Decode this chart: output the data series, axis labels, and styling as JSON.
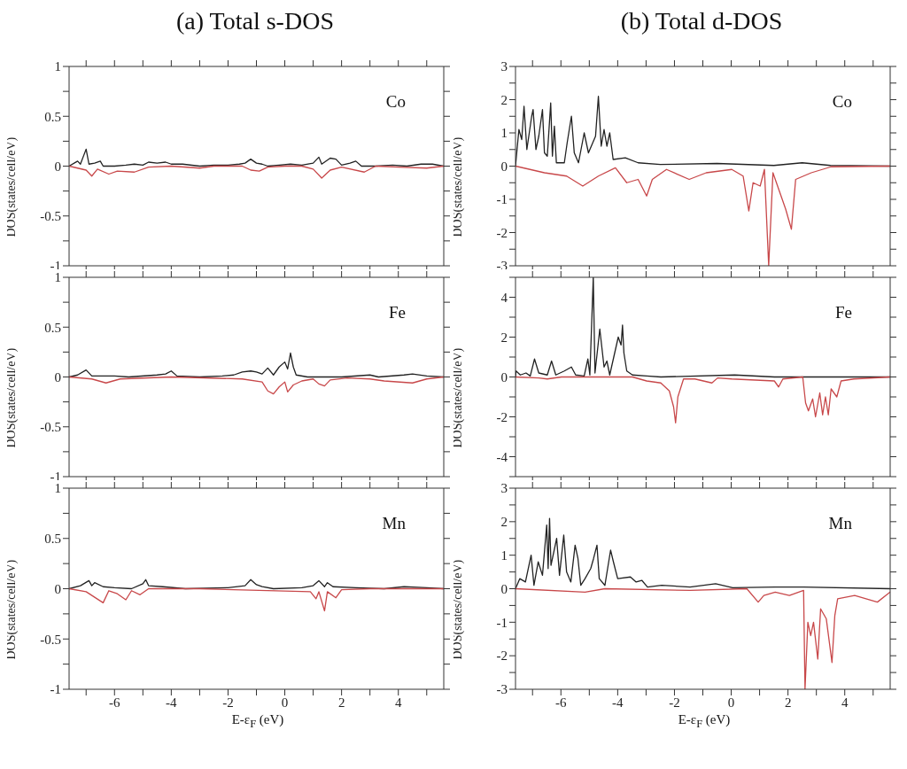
{
  "chart_data": [
    {
      "type": "line",
      "title": "(a) Total s-DOS",
      "ylabel": "DOS(states/cell/eV)",
      "annotations": [
        "Co"
      ],
      "tick_labels": "y",
      "xlim": [
        -7.6,
        5.6
      ],
      "xticks": [
        {
          "value": -7,
          "label": null
        },
        -6,
        {
          "value": -5,
          "label": null
        },
        -4,
        {
          "value": -3,
          "label": null
        },
        -2,
        {
          "value": -1,
          "label": null
        },
        0,
        {
          "value": 1,
          "label": null
        },
        2,
        {
          "value": 3,
          "label": null
        },
        4,
        {
          "value": 5,
          "label": null
        }
      ],
      "ylim": [
        -1,
        1
      ],
      "yticks": [
        -1,
        {
          "value": -0.75,
          "label": null
        },
        -0.5,
        {
          "value": -0.25,
          "label": null
        },
        0,
        {
          "value": 0.25,
          "label": null
        },
        0.5,
        {
          "value": 0.75,
          "label": null
        },
        1
      ],
      "series": [
        {
          "color": "#222222",
          "x": [
            -7.6,
            -7.3,
            -7.2,
            -7.0,
            -6.9,
            -6.7,
            -6.5,
            -6.4,
            -6.0,
            -5.6,
            -5.3,
            -5.0,
            -4.8,
            -4.5,
            -4.2,
            -4.0,
            -3.6,
            -3.0,
            -2.5,
            -2.0,
            -1.6,
            -1.4,
            -1.2,
            -1.0,
            -0.8,
            -0.6,
            -0.2,
            0.2,
            0.6,
            1.0,
            1.2,
            1.3,
            1.6,
            1.8,
            2.0,
            2.3,
            2.5,
            2.7,
            3.2,
            3.8,
            4.3,
            4.8,
            5.2,
            5.6
          ],
          "values": [
            0,
            0.05,
            0.02,
            0.17,
            0.02,
            0.03,
            0.05,
            0,
            0,
            0.01,
            0.02,
            0.01,
            0.04,
            0.03,
            0.04,
            0.02,
            0.02,
            0,
            0.01,
            0.01,
            0.02,
            0.03,
            0.07,
            0.03,
            0.02,
            0,
            0.01,
            0.02,
            0.01,
            0.03,
            0.09,
            0.02,
            0.08,
            0.07,
            0.01,
            0.03,
            0.05,
            0,
            0,
            0.01,
            0,
            0.02,
            0.02,
            0
          ]
        },
        {
          "color": "#c8484a",
          "x": [
            -7.6,
            -7.3,
            -7.0,
            -6.8,
            -6.6,
            -6.2,
            -5.9,
            -5.3,
            -4.8,
            -4.0,
            -3.0,
            -2.5,
            -1.5,
            -1.2,
            -0.9,
            -0.6,
            0,
            0.6,
            1.0,
            1.3,
            1.6,
            2.0,
            2.8,
            3.2,
            4.0,
            5.0,
            5.6
          ],
          "values": [
            0,
            -0.02,
            -0.04,
            -0.1,
            -0.03,
            -0.08,
            -0.05,
            -0.06,
            -0.01,
            0,
            -0.02,
            0,
            0,
            -0.04,
            -0.05,
            -0.01,
            0,
            0,
            -0.03,
            -0.12,
            -0.04,
            -0.01,
            -0.06,
            0,
            -0.01,
            -0.02,
            0
          ]
        }
      ]
    },
    {
      "type": "line",
      "title": "(b) Total d-DOS",
      "ylabel": "DOS(states/cell/eV)",
      "annotations": [
        "Co"
      ],
      "tick_labels": "y",
      "xlim": [
        -7.6,
        5.6
      ],
      "xticks": [
        {
          "value": -7,
          "label": null
        },
        -6,
        {
          "value": -5,
          "label": null
        },
        -4,
        {
          "value": -3,
          "label": null
        },
        -2,
        {
          "value": -1,
          "label": null
        },
        0,
        {
          "value": 1,
          "label": null
        },
        2,
        {
          "value": 3,
          "label": null
        },
        4,
        {
          "value": 5,
          "label": null
        }
      ],
      "ylim": [
        -3,
        3
      ],
      "yticks": [
        -3,
        {
          "value": -2.5,
          "label": null
        },
        -2,
        {
          "value": -1.5,
          "label": null
        },
        -1,
        {
          "value": -0.5,
          "label": null
        },
        0,
        {
          "value": 0.5,
          "label": null
        },
        1,
        {
          "value": 1.5,
          "label": null
        },
        2,
        {
          "value": 2.5,
          "label": null
        },
        3
      ],
      "series": [
        {
          "color": "#222222",
          "x": [
            -7.6,
            -7.48,
            -7.38,
            -7.3,
            -7.2,
            -7.03,
            -6.98,
            -6.88,
            -6.78,
            -6.65,
            -6.58,
            -6.48,
            -6.36,
            -6.3,
            -6.23,
            -6.16,
            -5.88,
            -5.78,
            -5.63,
            -5.53,
            -5.38,
            -5.18,
            -5.03,
            -4.78,
            -4.68,
            -4.58,
            -4.48,
            -4.38,
            -4.28,
            -4.16,
            -3.73,
            -3.28,
            -2.5,
            -0.5,
            1.5,
            2.5,
            3.5,
            5.6
          ],
          "values": [
            0,
            1.1,
            0.8,
            1.8,
            0.5,
            1.5,
            1.7,
            0.5,
            0.9,
            1.7,
            0.4,
            0.3,
            1.9,
            0.3,
            1.2,
            0.1,
            0.1,
            0.7,
            1.5,
            0.4,
            0.1,
            1.0,
            0.4,
            0.9,
            2.1,
            0.6,
            1.1,
            0.6,
            1.0,
            0.2,
            0.25,
            0.1,
            0.05,
            0.08,
            0.02,
            0.1,
            0.02,
            0
          ]
        },
        {
          "color": "#c8484a",
          "x": [
            -7.6,
            -6.58,
            -5.8,
            -5.23,
            -4.68,
            -4.08,
            -3.68,
            -3.28,
            -2.98,
            -2.78,
            -2.28,
            -1.48,
            -0.88,
            0.02,
            0.42,
            0.62,
            0.77,
            1.02,
            1.17,
            1.32,
            1.47,
            1.92,
            2.12,
            2.27,
            2.82,
            3.52,
            5.6
          ],
          "values": [
            0,
            -0.2,
            -0.3,
            -0.6,
            -0.3,
            -0.05,
            -0.5,
            -0.4,
            -0.9,
            -0.4,
            -0.1,
            -0.4,
            -0.2,
            -0.1,
            -0.3,
            -1.35,
            -0.5,
            -0.6,
            -0.1,
            -3.0,
            -0.2,
            -1.3,
            -1.9,
            -0.4,
            -0.2,
            -0.02,
            0
          ]
        }
      ]
    },
    {
      "type": "line",
      "ylabel": "DOS(states/cell/eV)",
      "annotations": [
        "Fe"
      ],
      "tick_labels": "y",
      "xlim": [
        -7.6,
        5.6
      ],
      "xticks": [
        {
          "value": -7,
          "label": null
        },
        -6,
        {
          "value": -5,
          "label": null
        },
        -4,
        {
          "value": -3,
          "label": null
        },
        -2,
        {
          "value": -1,
          "label": null
        },
        0,
        {
          "value": 1,
          "label": null
        },
        2,
        {
          "value": 3,
          "label": null
        },
        4,
        {
          "value": 5,
          "label": null
        }
      ],
      "ylim": [
        -1,
        1
      ],
      "yticks": [
        -1,
        {
          "value": -0.75,
          "label": null
        },
        -0.5,
        {
          "value": -0.25,
          "label": null
        },
        0,
        {
          "value": 0.25,
          "label": null
        },
        0.5,
        {
          "value": 0.75,
          "label": null
        },
        1
      ],
      "series": [
        {
          "color": "#222222",
          "x": [
            -7.6,
            -7.3,
            -7.0,
            -6.8,
            -6.0,
            -5.5,
            -4.5,
            -4.2,
            -4.0,
            -3.8,
            -3.0,
            -2.2,
            -1.8,
            -1.5,
            -1.2,
            -1.0,
            -0.8,
            -0.6,
            -0.4,
            -0.2,
            0,
            0.1,
            0.2,
            0.3,
            0.4,
            0.8,
            2.0,
            3.0,
            3.3,
            4.2,
            4.5,
            5.0,
            5.6
          ],
          "values": [
            0,
            0.02,
            0.07,
            0.01,
            0.01,
            0,
            0.02,
            0.03,
            0.06,
            0.01,
            0,
            0.01,
            0.02,
            0.05,
            0.06,
            0.05,
            0.03,
            0.09,
            0.02,
            0.1,
            0.15,
            0.08,
            0.24,
            0.1,
            0.02,
            0,
            0,
            0.02,
            0,
            0.02,
            0.03,
            0.01,
            0
          ]
        },
        {
          "color": "#c8484a",
          "x": [
            -7.6,
            -6.8,
            -6.3,
            -5.8,
            -4.0,
            -1.5,
            -0.8,
            -0.6,
            -0.4,
            -0.2,
            0,
            0.1,
            0.3,
            0.6,
            1.0,
            1.2,
            1.4,
            1.6,
            2.2,
            3.0,
            3.5,
            4.5,
            5.0,
            5.6
          ],
          "values": [
            0,
            -0.02,
            -0.06,
            -0.02,
            0,
            -0.02,
            -0.05,
            -0.14,
            -0.17,
            -0.1,
            -0.05,
            -0.15,
            -0.08,
            -0.04,
            -0.02,
            -0.07,
            -0.09,
            -0.03,
            -0.01,
            -0.02,
            -0.04,
            -0.06,
            -0.02,
            0
          ]
        }
      ]
    },
    {
      "type": "line",
      "ylabel": "DOS(states/cell/eV)",
      "annotations": [
        "Fe"
      ],
      "tick_labels": "y",
      "xlim": [
        -7.6,
        5.6
      ],
      "xticks": [
        {
          "value": -7,
          "label": null
        },
        -6,
        {
          "value": -5,
          "label": null
        },
        -4,
        {
          "value": -3,
          "label": null
        },
        -2,
        {
          "value": -1,
          "label": null
        },
        0,
        {
          "value": 1,
          "label": null
        },
        2,
        {
          "value": 3,
          "label": null
        },
        4,
        {
          "value": 5,
          "label": null
        }
      ],
      "ylim": [
        -5,
        5
      ],
      "yticks": [
        {
          "value": -5,
          "label": null
        },
        -4,
        {
          "value": -3,
          "label": null
        },
        -2,
        {
          "value": -1,
          "label": null
        },
        0,
        {
          "value": 1,
          "label": null
        },
        2,
        {
          "value": 3,
          "label": null
        },
        4,
        {
          "value": 5,
          "label": null
        }
      ],
      "series": [
        {
          "color": "#222222",
          "x": [
            -7.6,
            -7.58,
            -7.43,
            -7.23,
            -7.08,
            -6.93,
            -6.78,
            -6.48,
            -6.33,
            -6.18,
            -5.88,
            -5.63,
            -5.48,
            -5.18,
            -5.05,
            -4.98,
            -4.86,
            -4.8,
            -4.63,
            -4.48,
            -4.38,
            -4.28,
            -3.98,
            -3.88,
            -3.83,
            -3.78,
            -3.68,
            -3.48,
            -2.98,
            -2.48,
            0.12,
            1.52,
            5.6
          ],
          "values": [
            0,
            0.3,
            0.1,
            0.2,
            0.05,
            0.9,
            0.2,
            0.1,
            0.8,
            0.1,
            0.3,
            0.5,
            0.1,
            0.05,
            0.9,
            0.1,
            5,
            0.2,
            2.4,
            0.5,
            0.8,
            0.1,
            2.0,
            1.6,
            2.6,
            1.2,
            0.3,
            0.1,
            0.05,
            0,
            0.1,
            0,
            0
          ]
        },
        {
          "color": "#c8484a",
          "x": [
            -7.6,
            -6.78,
            -6.48,
            -5.98,
            -3.48,
            -2.98,
            -2.48,
            -2.18,
            -2.03,
            -1.96,
            -1.88,
            -1.68,
            -1.28,
            -0.68,
            -0.48,
            0.02,
            1.52,
            1.67,
            1.82,
            2.52,
            2.62,
            2.72,
            2.87,
            2.97,
            3.12,
            3.22,
            3.32,
            3.42,
            3.52,
            3.72,
            3.87,
            4.32,
            5.6
          ],
          "values": [
            0,
            -0.05,
            -0.1,
            0,
            0,
            -0.2,
            -0.3,
            -0.7,
            -1.5,
            -2.3,
            -1.0,
            -0.1,
            -0.1,
            -0.3,
            -0.05,
            -0.1,
            -0.2,
            -0.5,
            -0.1,
            0,
            -1.3,
            -1.7,
            -1.1,
            -2.0,
            -0.8,
            -1.9,
            -1.0,
            -1.9,
            -0.6,
            -1.0,
            -0.2,
            -0.1,
            0
          ]
        }
      ]
    },
    {
      "type": "line",
      "ylabel": "DOS(states/cell/eV)",
      "xlabel": "E-ε$_{F}$ (eV)",
      "annotations": [
        "Mn"
      ],
      "xlim": [
        -7.6,
        5.6
      ],
      "xticks": [
        {
          "value": -7,
          "label": null
        },
        -6,
        {
          "value": -5,
          "label": null
        },
        -4,
        {
          "value": -3,
          "label": null
        },
        -2,
        {
          "value": -1,
          "label": null
        },
        0,
        {
          "value": 1,
          "label": null
        },
        2,
        {
          "value": 3,
          "label": null
        },
        4,
        {
          "value": 5,
          "label": null
        }
      ],
      "ylim": [
        -1,
        1
      ],
      "yticks": [
        -1,
        {
          "value": -0.75,
          "label": null
        },
        -0.5,
        {
          "value": -0.25,
          "label": null
        },
        0,
        {
          "value": 0.25,
          "label": null
        },
        0.5,
        {
          "value": 0.75,
          "label": null
        },
        1
      ],
      "series": [
        {
          "color": "#222222",
          "x": [
            -7.6,
            -7.2,
            -6.9,
            -6.8,
            -6.7,
            -6.4,
            -6.0,
            -5.4,
            -5.0,
            -4.9,
            -4.8,
            -4.3,
            -3.5,
            -2.0,
            -1.4,
            -1.2,
            -1.0,
            -0.8,
            -0.4,
            0.6,
            1.0,
            1.2,
            1.4,
            1.5,
            1.7,
            2.5,
            3.5,
            4.2,
            5.0,
            5.6
          ],
          "values": [
            0,
            0.03,
            0.08,
            0.03,
            0.06,
            0.02,
            0.01,
            0,
            0.05,
            0.09,
            0.03,
            0.02,
            0,
            0.01,
            0.03,
            0.09,
            0.04,
            0.02,
            0,
            0.01,
            0.03,
            0.08,
            0.02,
            0.06,
            0.02,
            0.01,
            0,
            0.02,
            0.01,
            0
          ]
        },
        {
          "color": "#c8484a",
          "x": [
            -7.6,
            -7.0,
            -6.4,
            -6.2,
            -5.9,
            -5.6,
            -5.4,
            -5.1,
            -4.8,
            -3.0,
            0.9,
            1.1,
            1.2,
            1.4,
            1.5,
            1.8,
            2.0,
            3.0,
            5.6
          ],
          "values": [
            0,
            -0.03,
            -0.14,
            -0.02,
            -0.05,
            -0.11,
            -0.02,
            -0.06,
            0,
            0,
            -0.03,
            -0.1,
            -0.03,
            -0.22,
            -0.03,
            -0.09,
            -0.01,
            0,
            0
          ]
        }
      ]
    },
    {
      "type": "line",
      "ylabel": "DOS(states/cell/eV)",
      "xlabel": "E-ε$_{F}$ (eV)",
      "annotations": [
        "Mn"
      ],
      "xlim": [
        -7.6,
        5.6
      ],
      "xticks": [
        {
          "value": -7,
          "label": null
        },
        -6,
        {
          "value": -5,
          "label": null
        },
        -4,
        {
          "value": -3,
          "label": null
        },
        -2,
        {
          "value": -1,
          "label": null
        },
        0,
        {
          "value": 1,
          "label": null
        },
        2,
        {
          "value": 3,
          "label": null
        },
        4,
        {
          "value": 5,
          "label": null
        }
      ],
      "ylim": [
        -3,
        3
      ],
      "yticks": [
        -3,
        {
          "value": -2.5,
          "label": null
        },
        -2,
        {
          "value": -1.5,
          "label": null
        },
        -1,
        {
          "value": -0.5,
          "label": null
        },
        0,
        {
          "value": 0.5,
          "label": null
        },
        1,
        {
          "value": 1.5,
          "label": null
        },
        2,
        {
          "value": 2.5,
          "label": null
        },
        3
      ],
      "series": [
        {
          "color": "#222222",
          "x": [
            -7.6,
            -7.45,
            -7.25,
            -7.05,
            -6.95,
            -6.8,
            -6.65,
            -6.5,
            -6.45,
            -6.4,
            -6.35,
            -6.15,
            -6.05,
            -5.9,
            -5.8,
            -5.65,
            -5.5,
            -5.4,
            -5.3,
            -5.15,
            -4.95,
            -4.85,
            -4.73,
            -4.65,
            -4.45,
            -4.25,
            -4.15,
            -4.0,
            -3.55,
            -3.35,
            -3.15,
            -2.95,
            -2.45,
            -1.45,
            -0.55,
            0.05,
            1.55,
            2.55,
            5.6
          ],
          "values": [
            0,
            0.3,
            0.2,
            1.0,
            0.1,
            0.8,
            0.4,
            1.9,
            0.6,
            2.1,
            0.7,
            1.5,
            0.4,
            1.6,
            0.5,
            0.2,
            1.3,
            0.9,
            0.1,
            0.3,
            0.6,
            0.9,
            1.3,
            0.3,
            0.1,
            1.15,
            0.8,
            0.3,
            0.35,
            0.2,
            0.25,
            0.05,
            0.1,
            0.05,
            0.15,
            0.03,
            0.05,
            0.05,
            0
          ]
        },
        {
          "color": "#c8484a",
          "x": [
            -7.6,
            -5.15,
            -4.45,
            -1.45,
            0.55,
            0.95,
            1.15,
            1.55,
            2.05,
            2.55,
            2.6,
            2.7,
            2.8,
            2.9,
            3.05,
            3.15,
            3.35,
            3.55,
            3.65,
            3.75,
            4.35,
            5.15,
            5.6
          ],
          "values": [
            0,
            -0.1,
            0,
            -0.05,
            0,
            -0.4,
            -0.2,
            -0.1,
            -0.2,
            -0.05,
            -3.0,
            -1.0,
            -1.4,
            -1.0,
            -2.1,
            -0.6,
            -0.9,
            -2.2,
            -0.8,
            -0.3,
            -0.2,
            -0.4,
            -0.1
          ]
        }
      ]
    }
  ]
}
